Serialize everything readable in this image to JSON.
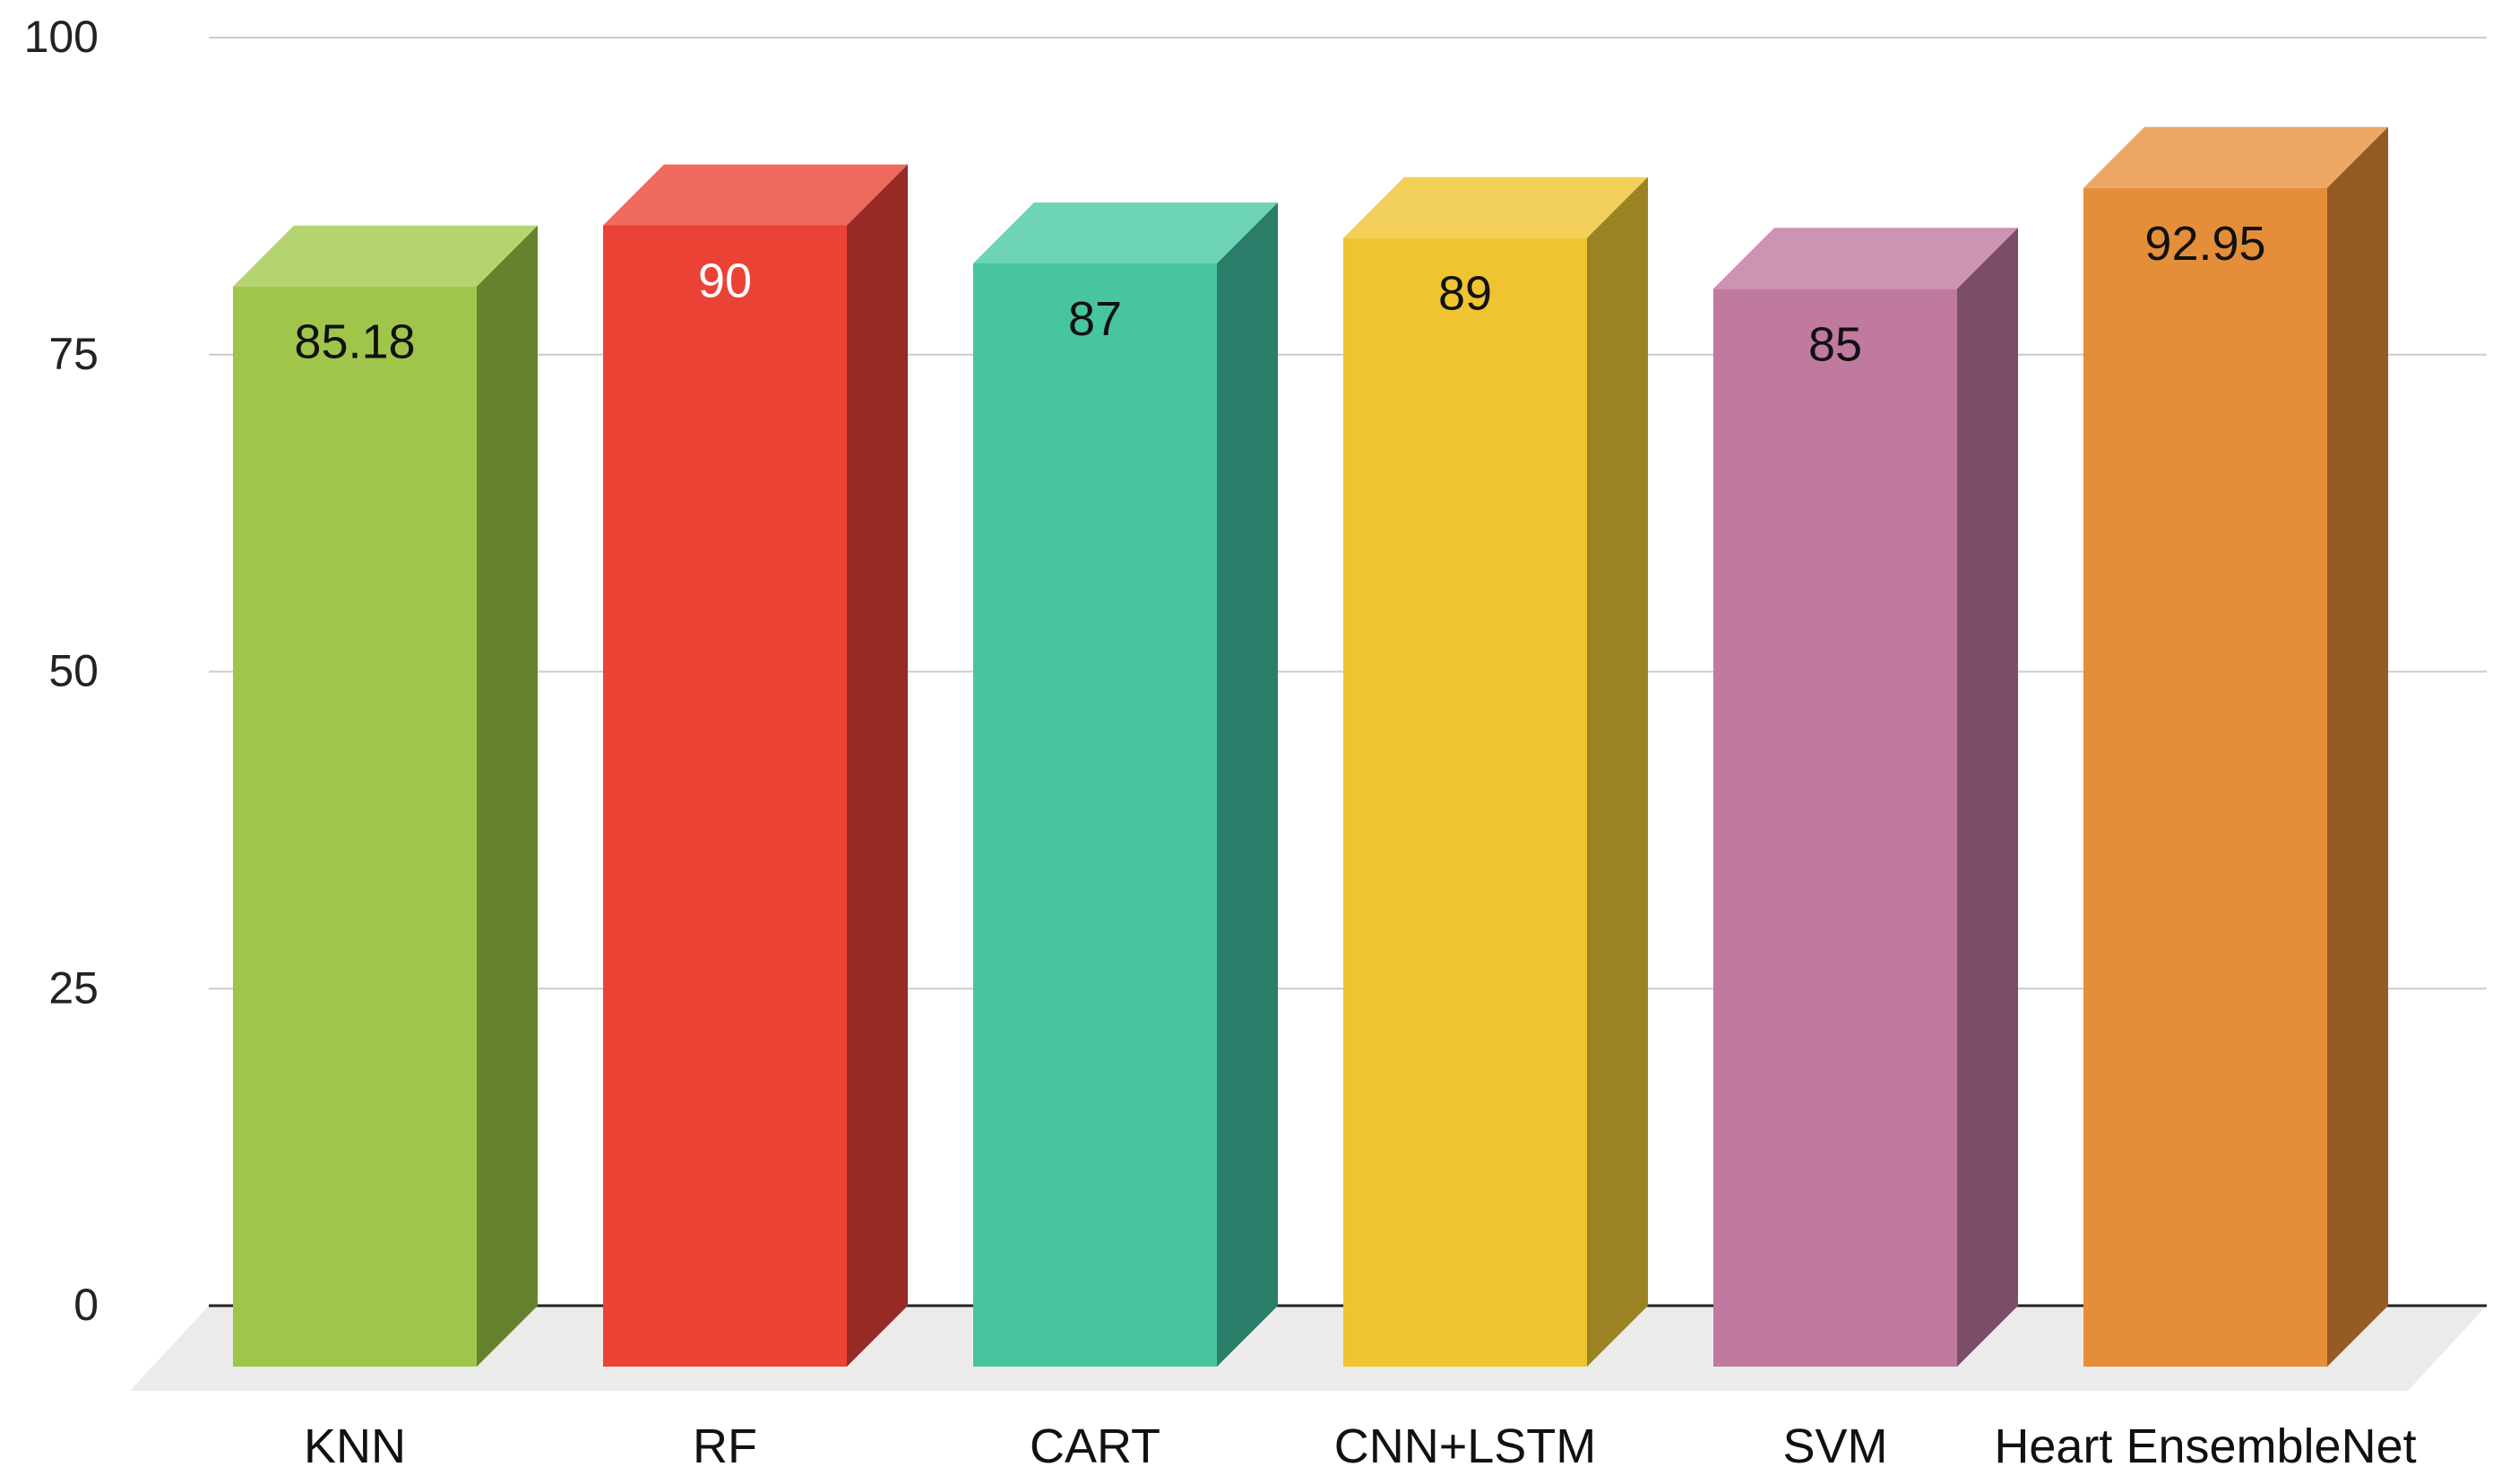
{
  "chart_data": {
    "type": "bar",
    "style": "3d",
    "title": "",
    "xlabel": "",
    "ylabel": "",
    "ylim": [
      0,
      100
    ],
    "yticks": [
      0,
      25,
      50,
      75,
      100
    ],
    "grid": true,
    "legend": "none",
    "categories": [
      "KNN",
      "RF",
      "CART",
      "CNN+LSTM",
      "SVM",
      "Heart EnsembleNet"
    ],
    "values": [
      85.18,
      90,
      87,
      89,
      85,
      92.95
    ],
    "value_labels": [
      "85.18",
      "90",
      "87",
      "89",
      "85",
      "92.95"
    ],
    "colors": [
      {
        "front": "#9fc54a",
        "side": "#67822e",
        "top": "#b3d46f"
      },
      {
        "front": "#ea4336",
        "side": "#972a24",
        "top": "#ee6a5e"
      },
      {
        "front": "#46c59f",
        "side": "#2b7e69",
        "top": "#6cd4b4"
      },
      {
        "front": "#f0c431",
        "side": "#9b8222",
        "top": "#f3d05a"
      },
      {
        "front": "#c07a9f",
        "side": "#7c4e67",
        "top": "#cd94b2"
      },
      {
        "front": "#e58e39",
        "side": "#955b24",
        "top": "#eca765"
      }
    ],
    "light_label_categories": [
      "RF"
    ]
  }
}
